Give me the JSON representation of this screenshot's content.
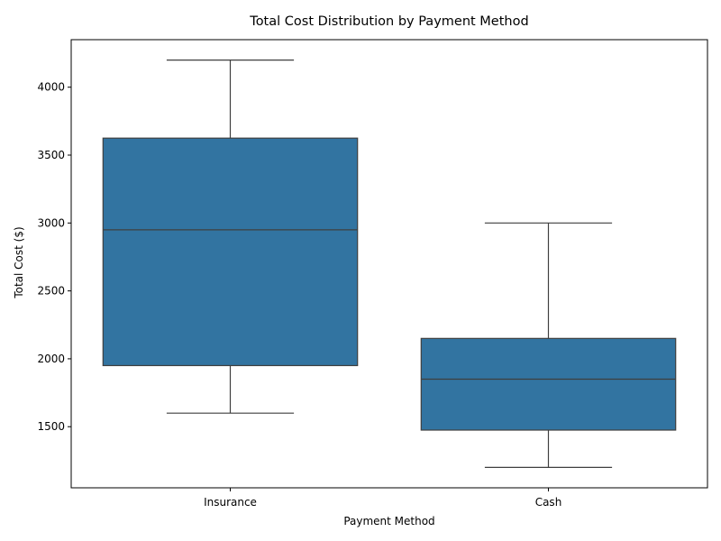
{
  "chart_data": {
    "type": "box",
    "title": "Total Cost Distribution by Payment Method",
    "xlabel": "Payment Method",
    "ylabel": "Total Cost ($)",
    "categories": [
      "Insurance",
      "Cash"
    ],
    "boxes": [
      {
        "category": "Insurance",
        "whisker_low": 1600,
        "q1": 1950,
        "median": 2950,
        "q3": 3625,
        "whisker_high": 4200
      },
      {
        "category": "Cash",
        "whisker_low": 1200,
        "q1": 1475,
        "median": 1850,
        "q3": 2150,
        "whisker_high": 3000
      }
    ],
    "yticks": [
      1500,
      2000,
      2500,
      3000,
      3500,
      4000
    ],
    "ylim": [
      1050,
      4350
    ],
    "grid": false,
    "legend": "none",
    "colors": {
      "box_fill": "#3274a1",
      "line": "#3f3f3f",
      "axis": "#000000"
    }
  }
}
